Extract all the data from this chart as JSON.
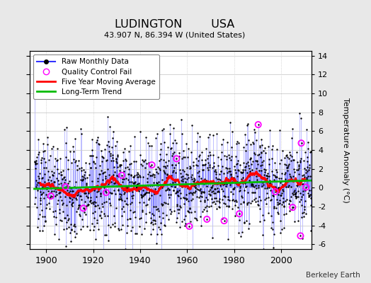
{
  "title": "LUDINGTON        USA",
  "subtitle": "43.907 N, 86.394 W (United States)",
  "ylabel": "Temperature Anomaly (°C)",
  "xlabel_note": "Berkeley Earth",
  "ylim": [
    -6.5,
    14.5
  ],
  "xlim": [
    1893,
    2013
  ],
  "yticks": [
    -6,
    -4,
    -2,
    0,
    2,
    4,
    6,
    8,
    10,
    12,
    14
  ],
  "xticks": [
    1900,
    1920,
    1940,
    1960,
    1980,
    2000
  ],
  "start_year": 1895,
  "end_year": 2012,
  "bg_color": "#e8e8e8",
  "plot_bg": "#ffffff",
  "line_color": "#3333ff",
  "dot_color": "#000000",
  "ma_color": "#ff0000",
  "trend_color": "#00bb00",
  "qc_color": "#ff00ff",
  "seed": 137,
  "noise_std": 3.0,
  "trend_slope": 0.008,
  "trend_intercept": 0.3
}
